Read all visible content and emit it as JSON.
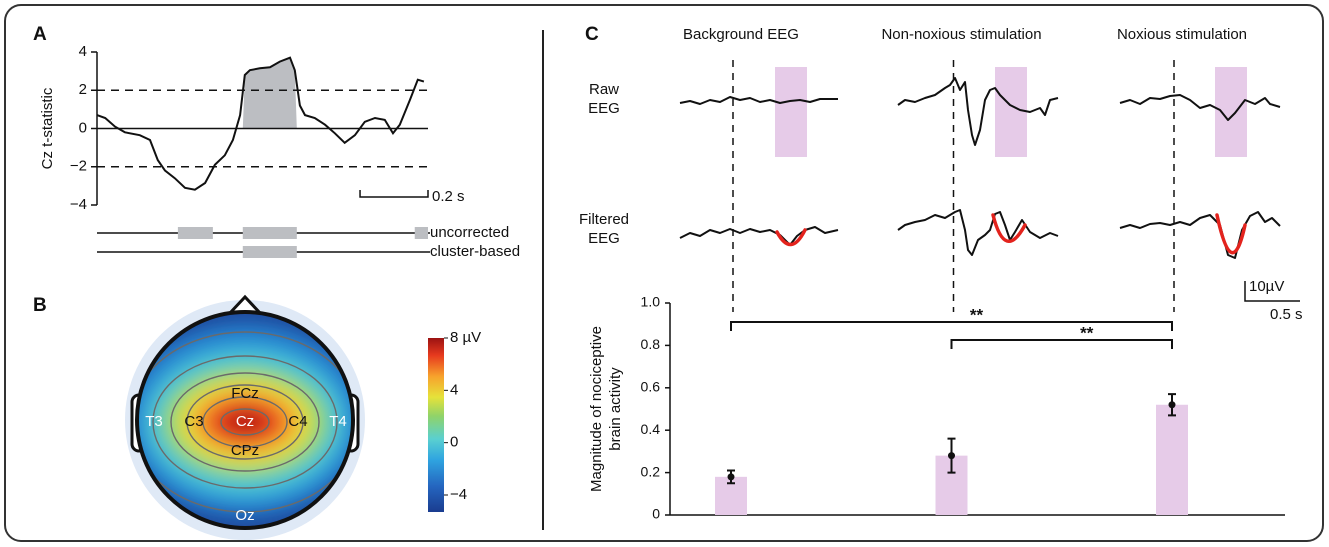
{
  "panel_labels": [
    "A",
    "B",
    "C"
  ],
  "chart_data": [
    {
      "type": "line",
      "ylabel": "Cz t-statistic",
      "x": [
        0,
        0.024,
        0.053,
        0.082,
        0.126,
        0.156,
        0.179,
        0.2,
        0.229,
        0.259,
        0.288,
        0.318,
        0.347,
        0.376,
        0.4,
        0.421,
        0.435,
        0.45,
        0.479,
        0.509,
        0.538,
        0.568,
        0.582,
        0.597,
        0.612,
        0.641,
        0.671,
        0.7,
        0.729,
        0.759,
        0.788,
        0.818,
        0.847,
        0.871,
        0.891,
        0.921,
        0.944,
        0.962
      ],
      "values": [
        0.7,
        0.55,
        0.1,
        -0.2,
        -0.35,
        -0.6,
        -1.65,
        -2.2,
        -2.6,
        -3.1,
        -3.2,
        -2.85,
        -1.9,
        -1.4,
        -0.6,
        0.7,
        2.8,
        3.05,
        3.15,
        3.2,
        3.5,
        3.7,
        3.05,
        1.2,
        0.7,
        0.55,
        0.2,
        -0.25,
        -0.75,
        -0.35,
        0.35,
        0.55,
        0.45,
        -0.25,
        0.2,
        1.5,
        2.55,
        2.45
      ],
      "color": "#111111",
      "xlim": [
        0,
        0.974
      ],
      "ylim": [
        -4,
        4
      ],
      "yticks": [
        {
          "value": -4,
          "label": "−4"
        },
        {
          "value": -2,
          "label": "−2"
        },
        0,
        2,
        4
      ],
      "thresholds": [
        -2,
        2
      ],
      "scale_bar": {
        "value": 0.2,
        "label": "0.2 s"
      },
      "significance": [
        {
          "name": "uncorrected",
          "intervals": [
            [
              0.238,
              0.341
            ],
            [
              0.429,
              0.588
            ],
            [
              0.935,
              0.974
            ]
          ]
        },
        {
          "name": "cluster-based",
          "intervals": [
            [
              0.429,
              0.588
            ]
          ]
        }
      ]
    },
    {
      "type": "topomap",
      "electrodes": [
        "FCz",
        "C3",
        "Cz",
        "C4",
        "CPz",
        "T3",
        "T4",
        "Oz"
      ],
      "clim": [
        -5.3,
        8
      ],
      "colorbar_ticks": [
        {
          "value": 8,
          "label": "8 µV"
        },
        4,
        0,
        {
          "value": -4,
          "label": "−4"
        }
      ]
    },
    {
      "type": "bar",
      "categories": [
        "Background EEG",
        "Non-noxious stimulation",
        "Noxious stimulation"
      ],
      "values": [
        0.18,
        0.28,
        0.52
      ],
      "errors": [
        0.03,
        0.08,
        0.05
      ],
      "color": "#e6cbe8",
      "ylabel": [
        "Magnitude of nociceptive",
        "brain activity"
      ],
      "ylim": [
        0,
        1.0
      ],
      "yticks": [
        0,
        0.2,
        0.4,
        0.6,
        0.8,
        {
          "value": 1,
          "label": "1.0"
        }
      ],
      "significance": [
        {
          "pair": [
            "Background EEG",
            "Noxious stimulation"
          ],
          "label": "**"
        },
        {
          "pair": [
            "Non-noxious stimulation",
            "Noxious stimulation"
          ],
          "label": "**"
        }
      ],
      "trace_rows": [
        [
          "Raw",
          "EEG"
        ],
        [
          "Filtered",
          "EEG"
        ]
      ],
      "trace_scale": [
        "10µV",
        "0.5 s"
      ]
    }
  ]
}
